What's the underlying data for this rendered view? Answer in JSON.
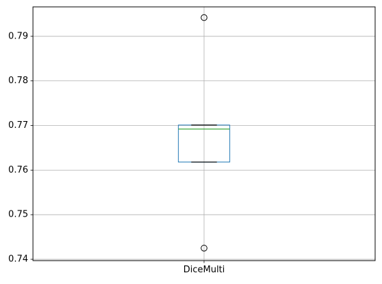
{
  "chart_data": {
    "type": "boxplot",
    "categories": [
      "DiceMulti"
    ],
    "series": [
      {
        "name": "DiceMulti",
        "whisker_low": 0.7618,
        "q1": 0.7618,
        "median": 0.7692,
        "q3": 0.7701,
        "whisker_high": 0.7701,
        "outliers": [
          0.7942,
          0.7425
        ]
      }
    ],
    "title": "",
    "xlabel": "",
    "ylabel": "",
    "ylim": [
      0.7397,
      0.7966
    ],
    "yticks": [
      0.74,
      0.75,
      0.76,
      0.77,
      0.78,
      0.79
    ],
    "grid": true,
    "legend": "none",
    "colors": {
      "box": "#1f77b4",
      "median": "#2ca02c",
      "whisker": "#000000",
      "outlier_edge": "#000000",
      "grid": "#b0b0b0",
      "axes": "#000000"
    }
  }
}
